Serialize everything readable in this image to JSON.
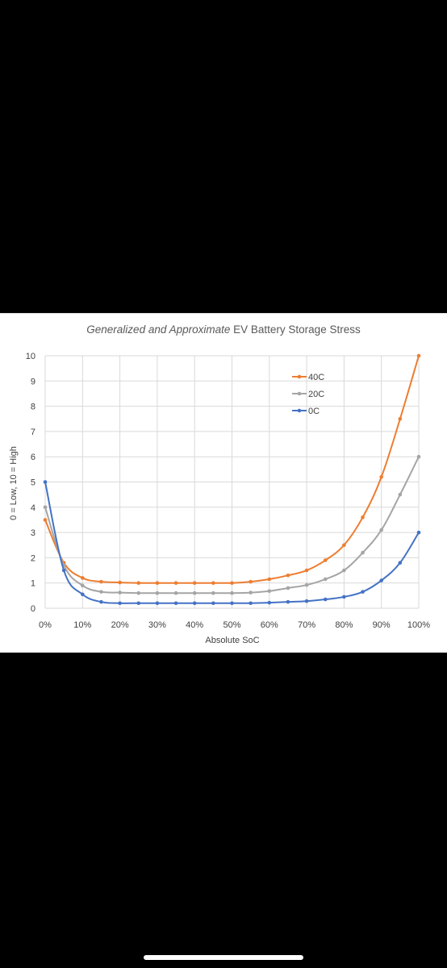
{
  "chart_data": {
    "type": "line",
    "title_italic": "Generalized and Approximate",
    "title_rest": " EV Battery Storage Stress",
    "xlabel": "Absolute SoC",
    "ylabel": "0 = Low, 10 = High",
    "x": [
      0,
      5,
      10,
      15,
      20,
      25,
      30,
      35,
      40,
      45,
      50,
      55,
      60,
      65,
      70,
      75,
      80,
      85,
      90,
      95,
      100
    ],
    "x_tick_labels": [
      "0%",
      "10%",
      "20%",
      "30%",
      "40%",
      "50%",
      "60%",
      "70%",
      "80%",
      "90%",
      "100%"
    ],
    "y_tick_labels": [
      "0",
      "1",
      "2",
      "3",
      "4",
      "5",
      "6",
      "7",
      "8",
      "9",
      "10"
    ],
    "xlim": [
      0,
      100
    ],
    "ylim": [
      0,
      10
    ],
    "grid": true,
    "legend_position": "top-right",
    "series": [
      {
        "name": "40C",
        "color": "#ed7d31",
        "values": [
          3.5,
          1.8,
          1.2,
          1.05,
          1.02,
          1.0,
          1.0,
          1.0,
          1.0,
          1.0,
          1.0,
          1.05,
          1.15,
          1.3,
          1.5,
          1.9,
          2.5,
          3.6,
          5.2,
          7.5,
          10.0
        ]
      },
      {
        "name": "20C",
        "color": "#a5a5a5",
        "values": [
          4.0,
          1.7,
          0.9,
          0.65,
          0.62,
          0.6,
          0.6,
          0.6,
          0.6,
          0.6,
          0.6,
          0.62,
          0.68,
          0.8,
          0.92,
          1.15,
          1.5,
          2.2,
          3.1,
          4.5,
          6.0
        ]
      },
      {
        "name": "0C",
        "color": "#4472c4",
        "values": [
          5.0,
          1.5,
          0.55,
          0.25,
          0.2,
          0.2,
          0.2,
          0.2,
          0.2,
          0.2,
          0.2,
          0.2,
          0.22,
          0.25,
          0.28,
          0.35,
          0.45,
          0.65,
          1.1,
          1.8,
          3.0
        ]
      }
    ]
  }
}
